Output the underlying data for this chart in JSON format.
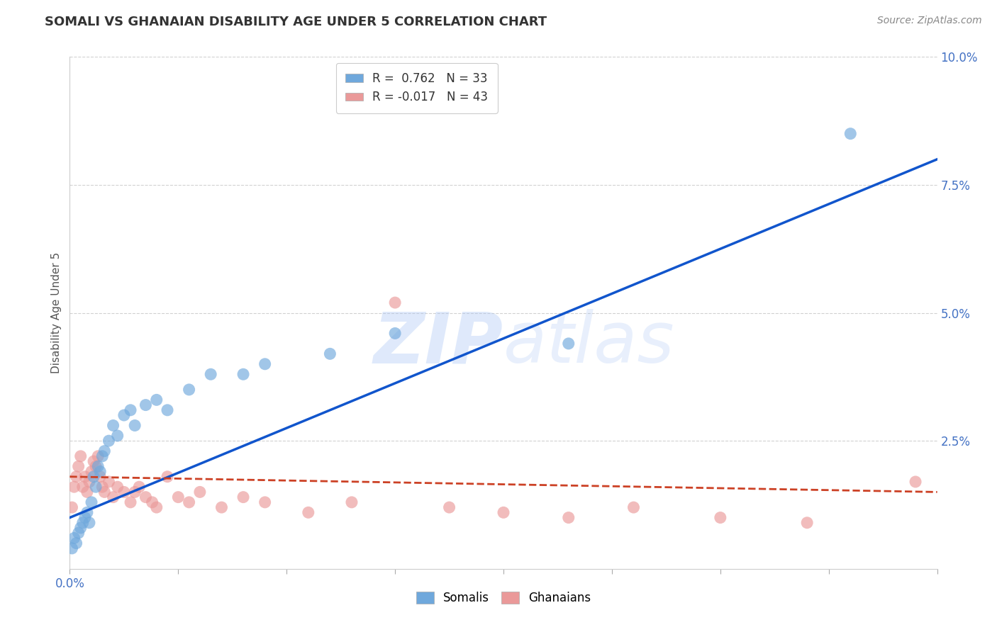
{
  "title": "SOMALI VS GHANAIAN DISABILITY AGE UNDER 5 CORRELATION CHART",
  "source": "Source: ZipAtlas.com",
  "ylabel": "Disability Age Under 5",
  "xlim": [
    0.0,
    0.4
  ],
  "ylim": [
    0.0,
    0.1
  ],
  "xtick_positions": [
    0.0,
    0.05,
    0.1,
    0.15,
    0.2,
    0.25,
    0.3,
    0.35,
    0.4
  ],
  "xtick_labels_major": {
    "0.0": "0.0%"
  },
  "ytick_positions": [
    0.0,
    0.025,
    0.05,
    0.075,
    0.1
  ],
  "ytick_labels": [
    "",
    "2.5%",
    "5.0%",
    "7.5%",
    "10.0%"
  ],
  "grid_yticks": [
    0.025,
    0.05,
    0.075,
    0.1
  ],
  "somali_R": 0.762,
  "somali_N": 33,
  "ghanaian_R": -0.017,
  "ghanaian_N": 43,
  "somali_color": "#6fa8dc",
  "ghanaian_color": "#ea9999",
  "somali_line_color": "#1155cc",
  "ghanaian_line_color": "#cc4125",
  "watermark_zip": "ZIP",
  "watermark_atlas": "atlas",
  "background_color": "#ffffff",
  "grid_color": "#cccccc",
  "tick_color": "#4472c4",
  "somali_x": [
    0.001,
    0.002,
    0.003,
    0.004,
    0.005,
    0.006,
    0.007,
    0.008,
    0.009,
    0.01,
    0.011,
    0.012,
    0.013,
    0.014,
    0.015,
    0.016,
    0.018,
    0.02,
    0.022,
    0.025,
    0.028,
    0.03,
    0.035,
    0.04,
    0.045,
    0.055,
    0.065,
    0.08,
    0.09,
    0.12,
    0.15,
    0.23,
    0.36
  ],
  "somali_y": [
    0.004,
    0.006,
    0.005,
    0.007,
    0.008,
    0.009,
    0.01,
    0.011,
    0.009,
    0.013,
    0.018,
    0.016,
    0.02,
    0.019,
    0.022,
    0.023,
    0.025,
    0.028,
    0.026,
    0.03,
    0.031,
    0.028,
    0.032,
    0.033,
    0.031,
    0.035,
    0.038,
    0.038,
    0.04,
    0.042,
    0.046,
    0.044,
    0.085
  ],
  "ghanaian_x": [
    0.001,
    0.002,
    0.003,
    0.004,
    0.005,
    0.006,
    0.007,
    0.008,
    0.009,
    0.01,
    0.011,
    0.012,
    0.013,
    0.014,
    0.015,
    0.016,
    0.018,
    0.02,
    0.022,
    0.025,
    0.028,
    0.03,
    0.032,
    0.035,
    0.038,
    0.04,
    0.045,
    0.05,
    0.055,
    0.06,
    0.07,
    0.08,
    0.09,
    0.11,
    0.13,
    0.15,
    0.175,
    0.2,
    0.23,
    0.26,
    0.3,
    0.34,
    0.39
  ],
  "ghanaian_y": [
    0.012,
    0.016,
    0.018,
    0.02,
    0.022,
    0.016,
    0.018,
    0.015,
    0.017,
    0.019,
    0.021,
    0.02,
    0.022,
    0.018,
    0.016,
    0.015,
    0.017,
    0.014,
    0.016,
    0.015,
    0.013,
    0.015,
    0.016,
    0.014,
    0.013,
    0.012,
    0.018,
    0.014,
    0.013,
    0.015,
    0.012,
    0.014,
    0.013,
    0.011,
    0.013,
    0.052,
    0.012,
    0.011,
    0.01,
    0.012,
    0.01,
    0.009,
    0.017
  ]
}
